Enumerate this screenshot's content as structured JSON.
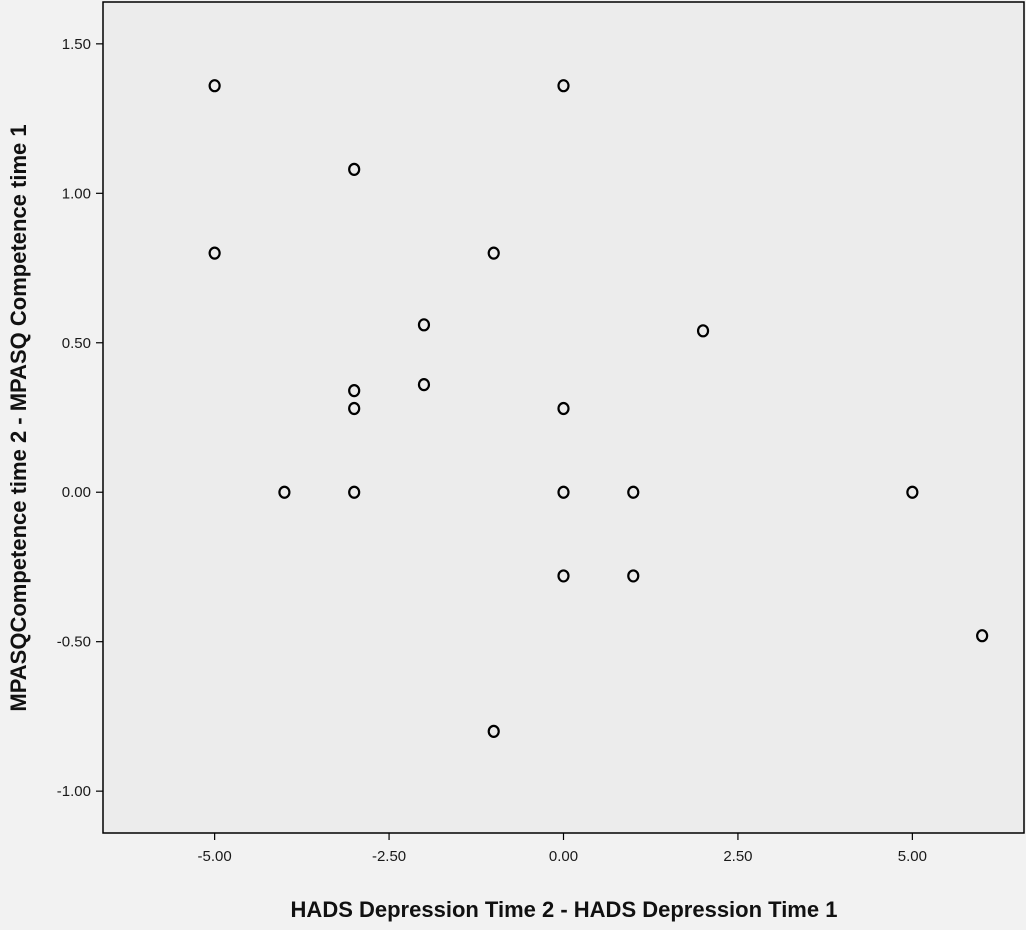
{
  "chart_data": {
    "type": "scatter",
    "title": "",
    "xlabel": "HADS Depression Time 2 - HADS Depression Time 1",
    "ylabel": "MPASQCompetence time 2 - MPASQ Competence time 1",
    "xlim": [
      -6.6,
      6.6
    ],
    "ylim": [
      -1.14,
      1.64
    ],
    "x_ticks": [
      -5.0,
      -2.5,
      0.0,
      2.5,
      5.0
    ],
    "x_tick_labels": [
      "-5.00",
      "-2.50",
      "0.00",
      "2.50",
      "5.00"
    ],
    "y_ticks": [
      -1.0,
      -0.5,
      0.0,
      0.5,
      1.0,
      1.5
    ],
    "y_tick_labels": [
      "-1.00",
      "-0.50",
      "0.00",
      "0.50",
      "1.00",
      "1.50"
    ],
    "grid": false,
    "legend": "none",
    "marker": "open-circle",
    "colors": {
      "plot_bg": "#ececec",
      "page_bg": "#f2f2f2",
      "marker": "#000000",
      "axis": "#000000"
    },
    "points": [
      {
        "x": -5,
        "y": 1.36
      },
      {
        "x": 0,
        "y": 1.36
      },
      {
        "x": -3,
        "y": 1.08
      },
      {
        "x": -5,
        "y": 0.8
      },
      {
        "x": -1,
        "y": 0.8
      },
      {
        "x": -2,
        "y": 0.56
      },
      {
        "x": 2,
        "y": 0.54
      },
      {
        "x": -2,
        "y": 0.36
      },
      {
        "x": -3,
        "y": 0.34
      },
      {
        "x": -3,
        "y": 0.28
      },
      {
        "x": 0,
        "y": 0.28
      },
      {
        "x": -4,
        "y": 0.0
      },
      {
        "x": -3,
        "y": 0.0
      },
      {
        "x": 0,
        "y": 0.0
      },
      {
        "x": 1,
        "y": 0.0
      },
      {
        "x": 5,
        "y": 0.0
      },
      {
        "x": 0,
        "y": -0.28
      },
      {
        "x": 1,
        "y": -0.28
      },
      {
        "x": 6,
        "y": -0.48
      },
      {
        "x": -1,
        "y": -0.8
      }
    ]
  }
}
